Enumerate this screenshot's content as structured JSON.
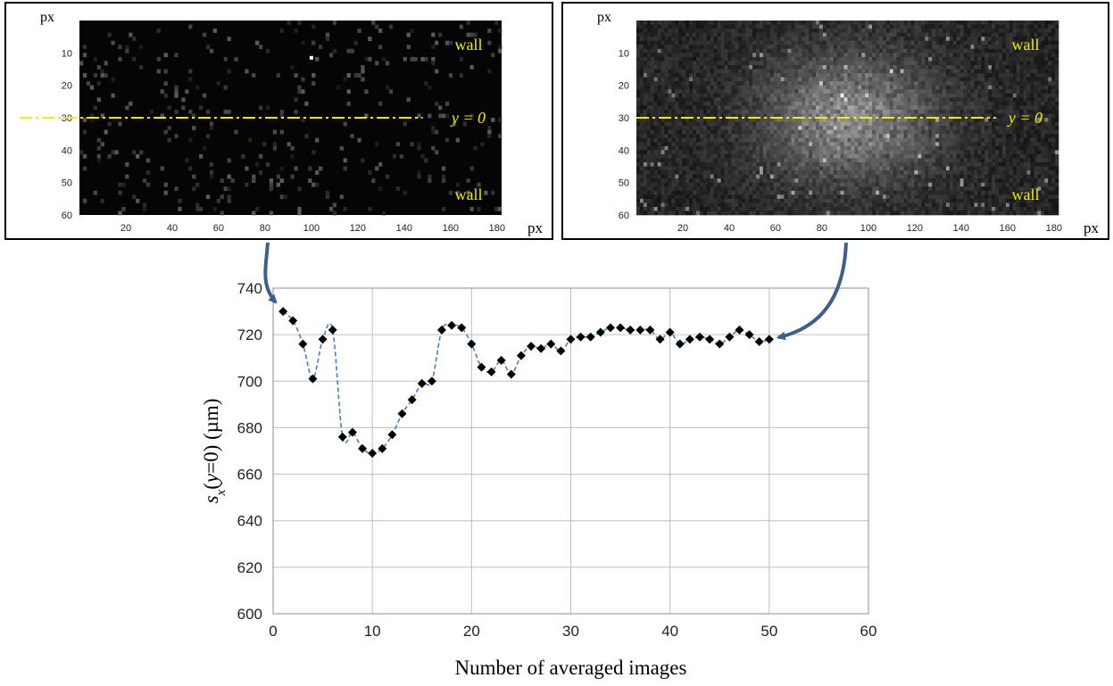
{
  "chart_data": [
    {
      "type": "heatmap",
      "x_unit_label": "px",
      "y_unit_label": "px",
      "x_ticks": [
        20,
        40,
        60,
        80,
        100,
        120,
        140,
        160,
        180
      ],
      "y_ticks": [
        10,
        20,
        30,
        40,
        50,
        60
      ],
      "xlim": [
        0,
        182
      ],
      "ylim": [
        0,
        60
      ],
      "annotations": {
        "wall_top": "wall",
        "wall_bottom": "wall",
        "center_line": "y = 0"
      },
      "center_line_y": 30,
      "center_line_x_end": 148,
      "colormap": "gray",
      "intensity_peak_x": 92,
      "intensity_peak_y": 30,
      "description_level": "sparse"
    },
    {
      "type": "heatmap",
      "x_unit_label": "px",
      "y_unit_label": "px",
      "x_ticks": [
        20,
        40,
        60,
        80,
        100,
        120,
        140,
        160,
        180
      ],
      "y_ticks": [
        10,
        20,
        30,
        40,
        50,
        60
      ],
      "xlim": [
        0,
        182
      ],
      "ylim": [
        0,
        60
      ],
      "annotations": {
        "wall_top": "wall",
        "wall_bottom": "wall",
        "center_line": "y = 0"
      },
      "center_line_y": 30,
      "center_line_x_end": 155,
      "colormap": "gray",
      "intensity_peak_x": 92,
      "intensity_peak_y": 30,
      "description_level": "dense"
    },
    {
      "type": "line",
      "xlabel": "Number of averaged images",
      "ylabel_main": "s",
      "ylabel_sub": "x",
      "ylabel_mid": "(",
      "ylabel_var": "y",
      "ylabel_tail": "=0) (µm)",
      "xlim": [
        0,
        60
      ],
      "ylim": [
        600,
        740
      ],
      "x_ticks": [
        0,
        10,
        20,
        30,
        40,
        50,
        60
      ],
      "y_ticks": [
        600,
        620,
        640,
        660,
        680,
        700,
        720,
        740
      ],
      "grid": true,
      "line_color": "#4a7ebb",
      "marker_color": "#000000",
      "arrow_color": "#3e5f8a",
      "x": [
        1,
        2,
        3,
        4,
        5,
        6,
        7,
        8,
        9,
        10,
        11,
        12,
        13,
        14,
        15,
        16,
        17,
        18,
        19,
        20,
        21,
        22,
        23,
        24,
        25,
        26,
        27,
        28,
        29,
        30,
        31,
        32,
        33,
        34,
        35,
        36,
        37,
        38,
        39,
        40,
        41,
        42,
        43,
        44,
        45,
        46,
        47,
        48,
        49,
        50
      ],
      "y": [
        730,
        726,
        716,
        701,
        718,
        722,
        676,
        678,
        671,
        669,
        671,
        677,
        686,
        692,
        699,
        700,
        722,
        724,
        723,
        716,
        706,
        704,
        709,
        703,
        711,
        715,
        714,
        716,
        713,
        718,
        719,
        719,
        721,
        723,
        723,
        722,
        722,
        722,
        718,
        721,
        716,
        718,
        719,
        718,
        716,
        719,
        722,
        720,
        717,
        718
      ]
    }
  ]
}
